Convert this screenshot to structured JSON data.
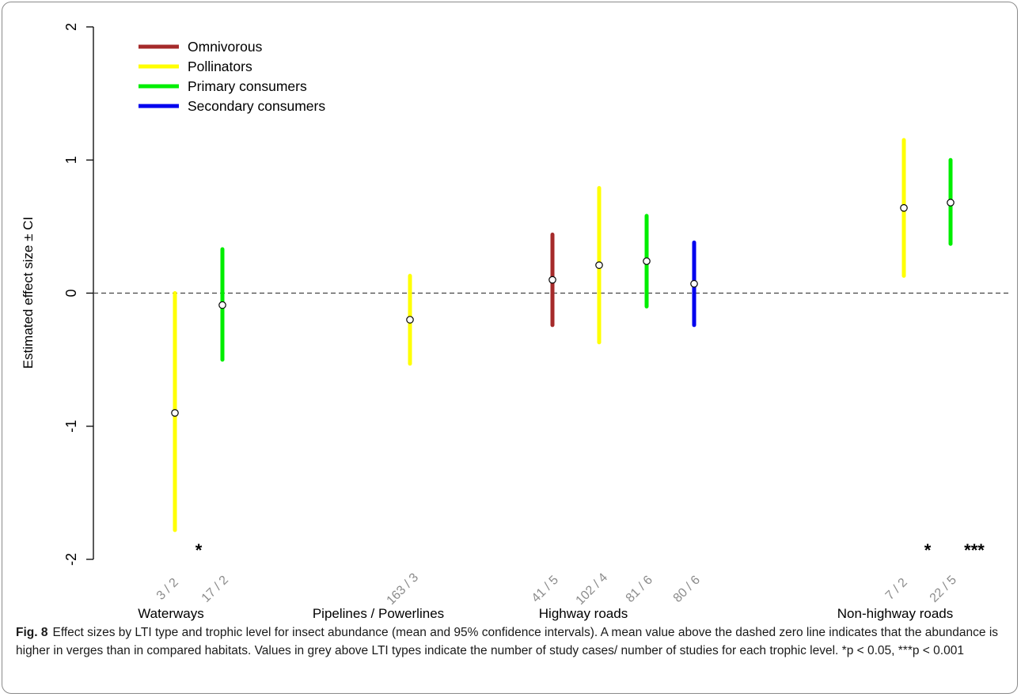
{
  "chart_data": {
    "type": "forest",
    "ylabel": "Estimated effect size ± CI",
    "ylim": [
      -2,
      2
    ],
    "yticks": [
      -2,
      -1,
      0,
      1,
      2
    ],
    "zero_line": "dashed",
    "legend": {
      "placement": "top-left",
      "entries": [
        {
          "name": "Omnivorous",
          "color": "#a52a2a"
        },
        {
          "name": "Pollinators",
          "color": "#ffff00"
        },
        {
          "name": "Primary consumers",
          "color": "#00ee00"
        },
        {
          "name": "Secondary consumers",
          "color": "#0000ee"
        }
      ]
    },
    "groups": [
      "Waterways",
      "Pipelines / Powerlines",
      "Highway roads",
      "Non-highway roads"
    ],
    "points": [
      {
        "group": "Waterways",
        "trophic": "Pollinators",
        "label": "3 / 2",
        "mean": -0.9,
        "lower": -1.78,
        "upper": 0.0,
        "sig": "*"
      },
      {
        "group": "Waterways",
        "trophic": "Primary consumers",
        "label": "17 / 2",
        "mean": -0.09,
        "lower": -0.5,
        "upper": 0.33,
        "sig": ""
      },
      {
        "group": "Pipelines / Powerlines",
        "trophic": "Pollinators",
        "label": "163 / 3",
        "mean": -0.2,
        "lower": -0.53,
        "upper": 0.13,
        "sig": ""
      },
      {
        "group": "Highway roads",
        "trophic": "Omnivorous",
        "label": "41 / 5",
        "mean": 0.1,
        "lower": -0.24,
        "upper": 0.44,
        "sig": ""
      },
      {
        "group": "Highway roads",
        "trophic": "Pollinators",
        "label": "102 / 4",
        "mean": 0.21,
        "lower": -0.37,
        "upper": 0.79,
        "sig": ""
      },
      {
        "group": "Highway roads",
        "trophic": "Primary consumers",
        "label": "81 / 6",
        "mean": 0.24,
        "lower": -0.1,
        "upper": 0.58,
        "sig": ""
      },
      {
        "group": "Highway roads",
        "trophic": "Secondary consumers",
        "label": "80 / 6",
        "mean": 0.07,
        "lower": -0.24,
        "upper": 0.38,
        "sig": ""
      },
      {
        "group": "Non-highway roads",
        "trophic": "Pollinators",
        "label": "7 / 2",
        "mean": 0.64,
        "lower": 0.13,
        "upper": 1.15,
        "sig": "*"
      },
      {
        "group": "Non-highway roads",
        "trophic": "Primary consumers",
        "label": "22 / 5",
        "mean": 0.68,
        "lower": 0.37,
        "upper": 1.0,
        "sig": "***"
      }
    ],
    "label_color": "#8c8c8c"
  },
  "caption": {
    "label": "Fig. 8",
    "text": "Effect sizes by LTI type and trophic level for insect abundance (mean and 95% confidence intervals). A mean value above the dashed zero line indicates that the abundance is higher in verges than in compared habitats. Values in grey above LTI types indicate the number of study cases/ number of studies for each trophic level. *p < 0.05, ***p < 0.001"
  }
}
